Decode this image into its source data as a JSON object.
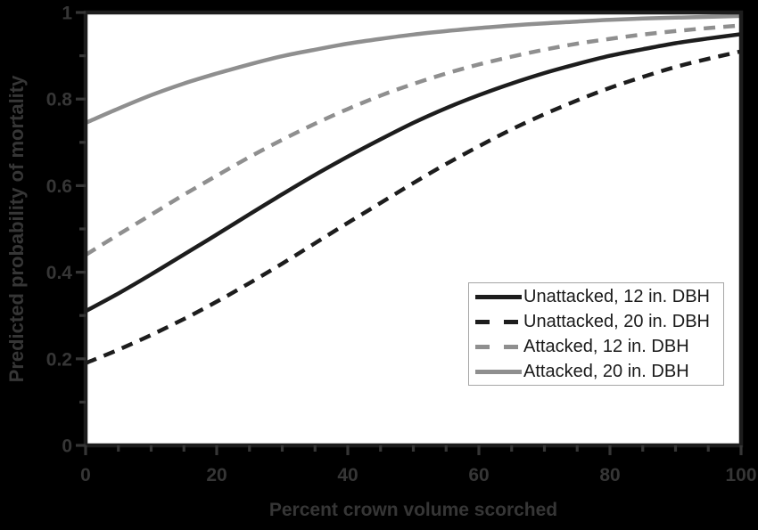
{
  "figure": {
    "background_color": "#000000",
    "plot_background_color": "#ffffff",
    "spine_color": "#1d1d1d",
    "outside_text_color": "#363636",
    "legend_border_color": "#a6a6a6",
    "legend_text_color": "#1a1a1a"
  },
  "chart_data": {
    "type": "line",
    "title": "",
    "xlabel": "Percent crown volume scorched",
    "ylabel": "Predicted probability of mortality",
    "xlim": [
      0,
      100
    ],
    "ylim": [
      0,
      1
    ],
    "x_major_ticks": [
      0,
      20,
      40,
      60,
      80,
      100
    ],
    "x_tick_labels": [
      "0",
      "20",
      "40",
      "60",
      "80",
      "100"
    ],
    "x_minor_tick_step": 5,
    "y_major_ticks": [
      0,
      0.2,
      0.4,
      0.6,
      0.8,
      1
    ],
    "y_tick_labels": [
      "0",
      "0.2",
      "0.4",
      "0.6",
      "0.8",
      "1"
    ],
    "y_minor_tick_step": 0.1,
    "grid": false,
    "legend_position": "lower right",
    "x": [
      0,
      5,
      10,
      15,
      20,
      25,
      30,
      35,
      40,
      45,
      50,
      55,
      60,
      65,
      70,
      75,
      80,
      85,
      90,
      95,
      100
    ],
    "series": [
      {
        "name": "Unattacked, 12 in. DBH",
        "color": "#1d1d1d",
        "line_style": "solid",
        "values": [
          0.31,
          0.351,
          0.395,
          0.441,
          0.487,
          0.534,
          0.58,
          0.625,
          0.667,
          0.707,
          0.745,
          0.779,
          0.809,
          0.836,
          0.86,
          0.881,
          0.9,
          0.915,
          0.929,
          0.94,
          0.95
        ]
      },
      {
        "name": "Unattacked, 20 in. DBH",
        "color": "#1d1d1d",
        "line_style": "dashed",
        "values": [
          0.19,
          0.221,
          0.255,
          0.292,
          0.332,
          0.375,
          0.42,
          0.467,
          0.514,
          0.56,
          0.606,
          0.65,
          0.691,
          0.73,
          0.765,
          0.797,
          0.826,
          0.851,
          0.874,
          0.893,
          0.91
        ]
      },
      {
        "name": "Attacked, 12 in. DBH",
        "color": "#8f8f8f",
        "line_style": "dashed",
        "values": [
          0.44,
          0.487,
          0.533,
          0.579,
          0.623,
          0.666,
          0.706,
          0.743,
          0.777,
          0.808,
          0.835,
          0.859,
          0.88,
          0.898,
          0.914,
          0.928,
          0.939,
          0.949,
          0.957,
          0.964,
          0.97
        ]
      },
      {
        "name": "Attacked, 20 in. DBH",
        "color": "#8f8f8f",
        "line_style": "solid",
        "values": [
          0.745,
          0.778,
          0.809,
          0.836,
          0.859,
          0.88,
          0.899,
          0.914,
          0.928,
          0.939,
          0.949,
          0.957,
          0.964,
          0.97,
          0.975,
          0.979,
          0.983,
          0.986,
          0.988,
          0.99,
          0.992
        ]
      }
    ]
  }
}
